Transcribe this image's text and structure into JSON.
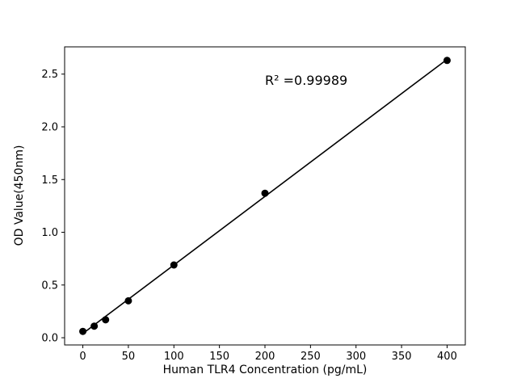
{
  "chart_data": {
    "type": "scatter",
    "title": "",
    "xlabel": "Human TLR4 Concentration (pg/mL)",
    "ylabel": "OD Value(450nm)",
    "annotation": {
      "text": "R² =0.99989",
      "x": 200,
      "y": 2.4
    },
    "x": [
      0,
      12.5,
      25,
      50,
      100,
      200,
      400
    ],
    "y": [
      0.06,
      0.11,
      0.17,
      0.35,
      0.69,
      1.37,
      2.63
    ],
    "fit_line": {
      "x": [
        0,
        400
      ],
      "y": [
        0.04,
        2.64
      ]
    },
    "xlim": [
      -20,
      420
    ],
    "ylim": [
      -0.0685,
      2.7585
    ],
    "xticks": [
      0,
      50,
      100,
      150,
      200,
      250,
      300,
      350,
      400
    ],
    "xtick_labels": [
      "0",
      "50",
      "100",
      "150",
      "200",
      "250",
      "300",
      "350",
      "400"
    ],
    "yticks": [
      0.0,
      0.5,
      1.0,
      1.5,
      2.0,
      2.5
    ],
    "ytick_labels": [
      "0.0",
      "0.5",
      "1.0",
      "1.5",
      "2.0",
      "2.5"
    ],
    "marker_color": "#000000",
    "line_color": "#000000",
    "frame_color": "#000000",
    "background": "#ffffff",
    "grid": false,
    "legend": null
  }
}
